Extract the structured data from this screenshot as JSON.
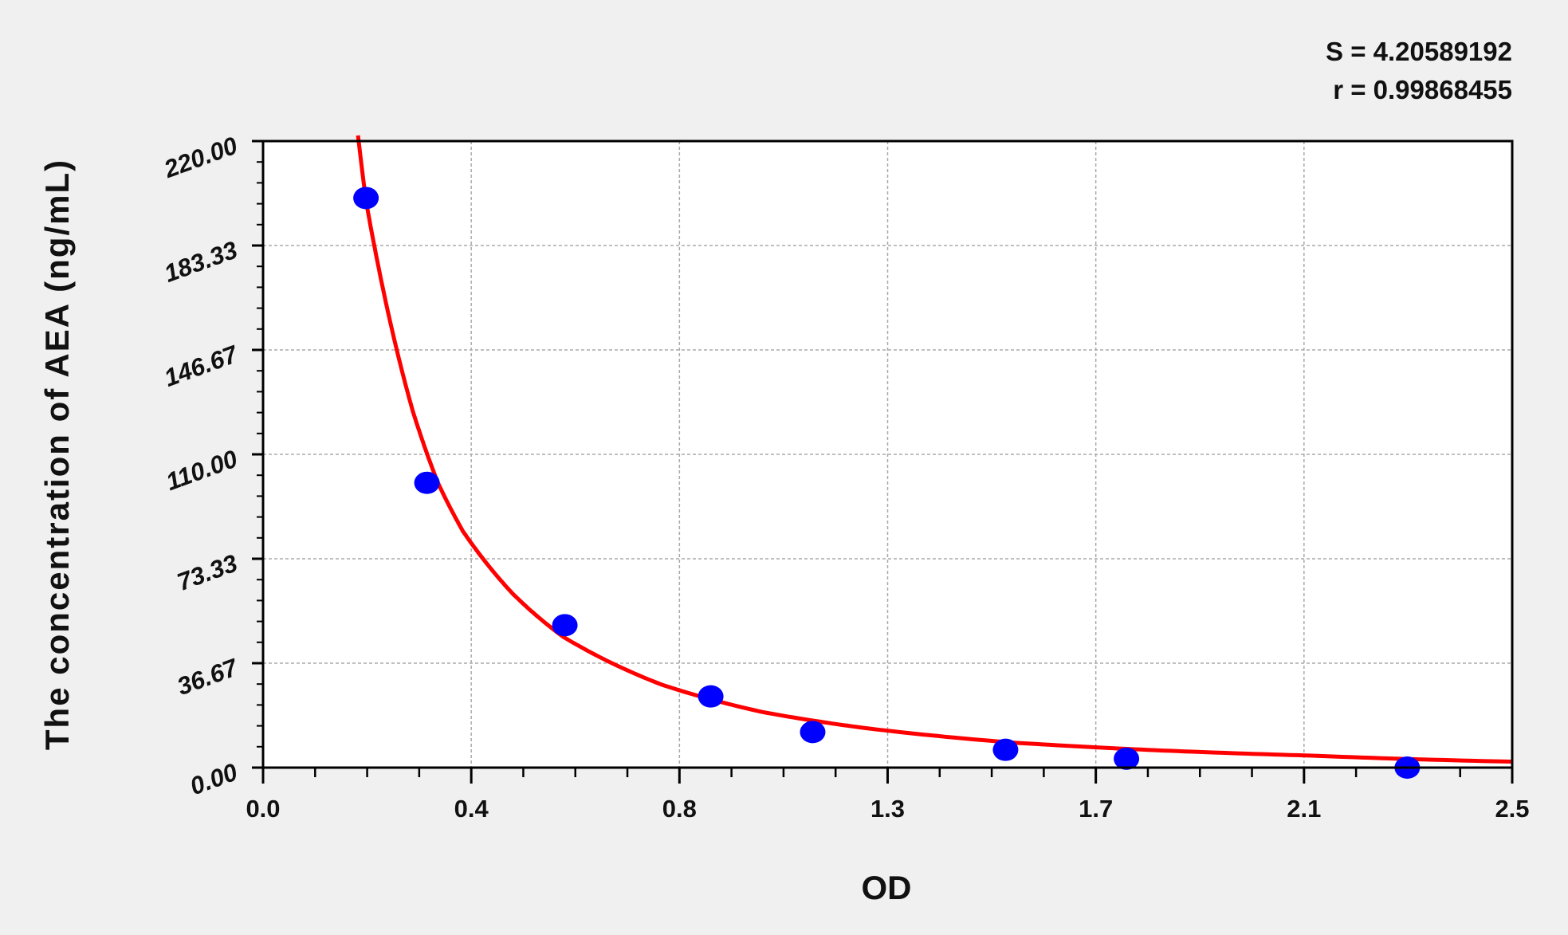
{
  "chart_data": {
    "type": "scatter",
    "title": "",
    "xlabel": "OD",
    "ylabel": "The concentration of AEA (ng/mL)",
    "xlim": [
      0,
      2.5
    ],
    "ylim": [
      0,
      220
    ],
    "x_ticks": [
      "0.0",
      "0.4",
      "0.8",
      "1.3",
      "1.7",
      "2.1",
      "2.5"
    ],
    "y_ticks": [
      "0.00",
      "36.67",
      "73.33",
      "110.00",
      "146.67",
      "183.33",
      "220.00"
    ],
    "grid": true,
    "stats": [
      "S = 4.20589192",
      "r = 0.99868455"
    ],
    "colors": {
      "points": "#0000ff",
      "curve": "#ff0000",
      "plot_bg": "#ffffff",
      "page_bg": "#f0f0f0"
    },
    "points": {
      "x": [
        0.206,
        0.328,
        0.604,
        0.896,
        1.1,
        1.486,
        1.728,
        2.29
      ],
      "y": [
        200,
        100,
        50,
        25,
        12.5,
        6.25,
        3.12,
        0
      ]
    },
    "fitted_curve": {
      "x": [
        0.19,
        0.206,
        0.25,
        0.3,
        0.35,
        0.4,
        0.5,
        0.6,
        0.8,
        1.0,
        1.2,
        1.5,
        1.8,
        2.1,
        2.5
      ],
      "y": [
        222,
        199,
        160,
        125,
        100,
        83,
        61,
        46,
        29,
        19.5,
        14,
        8.8,
        6.0,
        4.2,
        2.1
      ]
    }
  }
}
